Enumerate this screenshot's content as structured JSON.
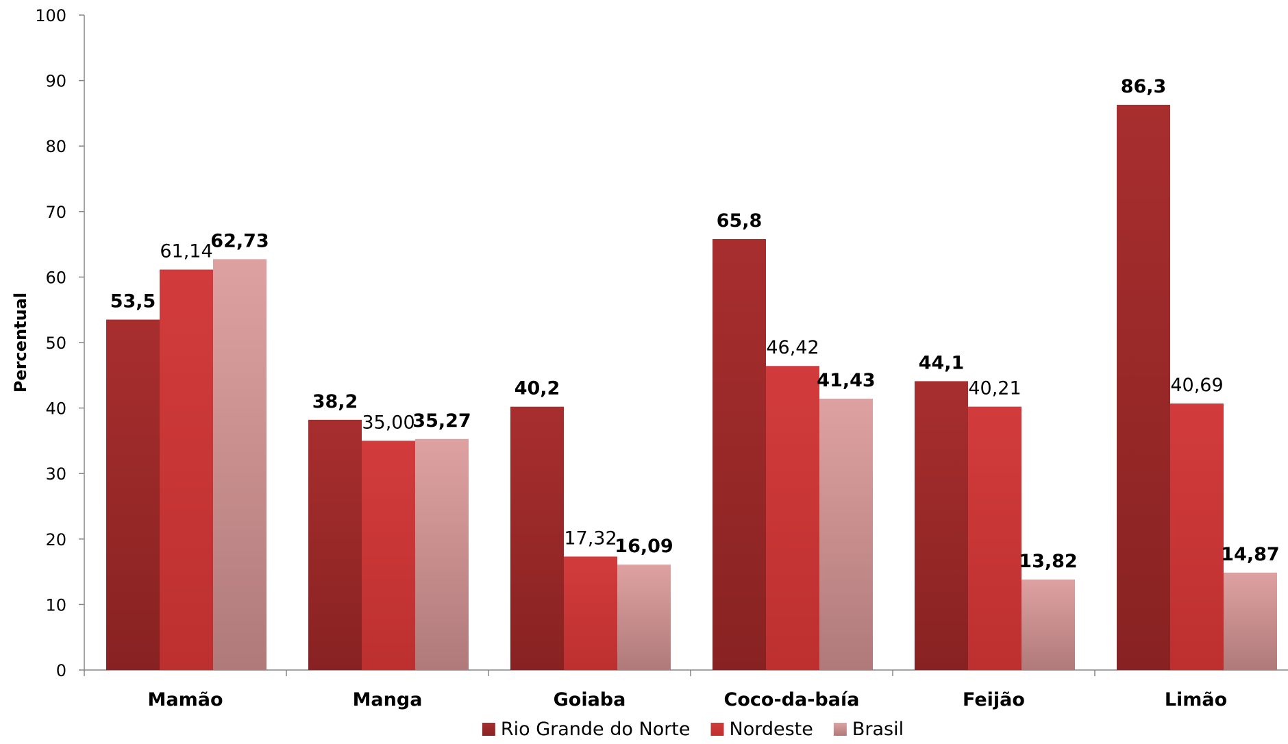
{
  "chart_data": {
    "type": "bar",
    "categories": [
      "Mamão",
      "Manga",
      "Goiaba",
      "Coco-da-baía",
      "Feijão",
      "Limão"
    ],
    "series": [
      {
        "name": "Rio Grande do Norte",
        "values": [
          53.5,
          38.2,
          40.2,
          65.8,
          44.1,
          86.3
        ],
        "labels": [
          "53,5",
          "38,2",
          "40,2",
          "65,8",
          "44,1",
          "86,3"
        ],
        "bold": true,
        "color_top": "#a82e2e",
        "color_bottom": "#882222"
      },
      {
        "name": "Nordeste",
        "values": [
          61.14,
          35.0,
          17.32,
          46.42,
          40.21,
          40.69
        ],
        "labels": [
          "61,14",
          "35,00",
          "17,32",
          "46,42",
          "40,21",
          "40,69"
        ],
        "bold": false,
        "color_top": "#d23b3b",
        "color_bottom": "#bd3030"
      },
      {
        "name": "Brasil",
        "values": [
          62.73,
          35.27,
          16.09,
          41.43,
          13.82,
          14.87
        ],
        "labels": [
          "62,73",
          "35,27",
          "16,09",
          "41,43",
          "13,82",
          "14,87"
        ],
        "bold": true,
        "color_top": "#dea1a1",
        "color_bottom": "#b07a7a"
      }
    ],
    "ylabel": "Percentual",
    "ylim": [
      0,
      100
    ],
    "yticks": [
      "0",
      "10",
      "20",
      "30",
      "40",
      "50",
      "60",
      "70",
      "80",
      "90",
      "100"
    ],
    "grid": false,
    "legend_position": "bottom"
  }
}
